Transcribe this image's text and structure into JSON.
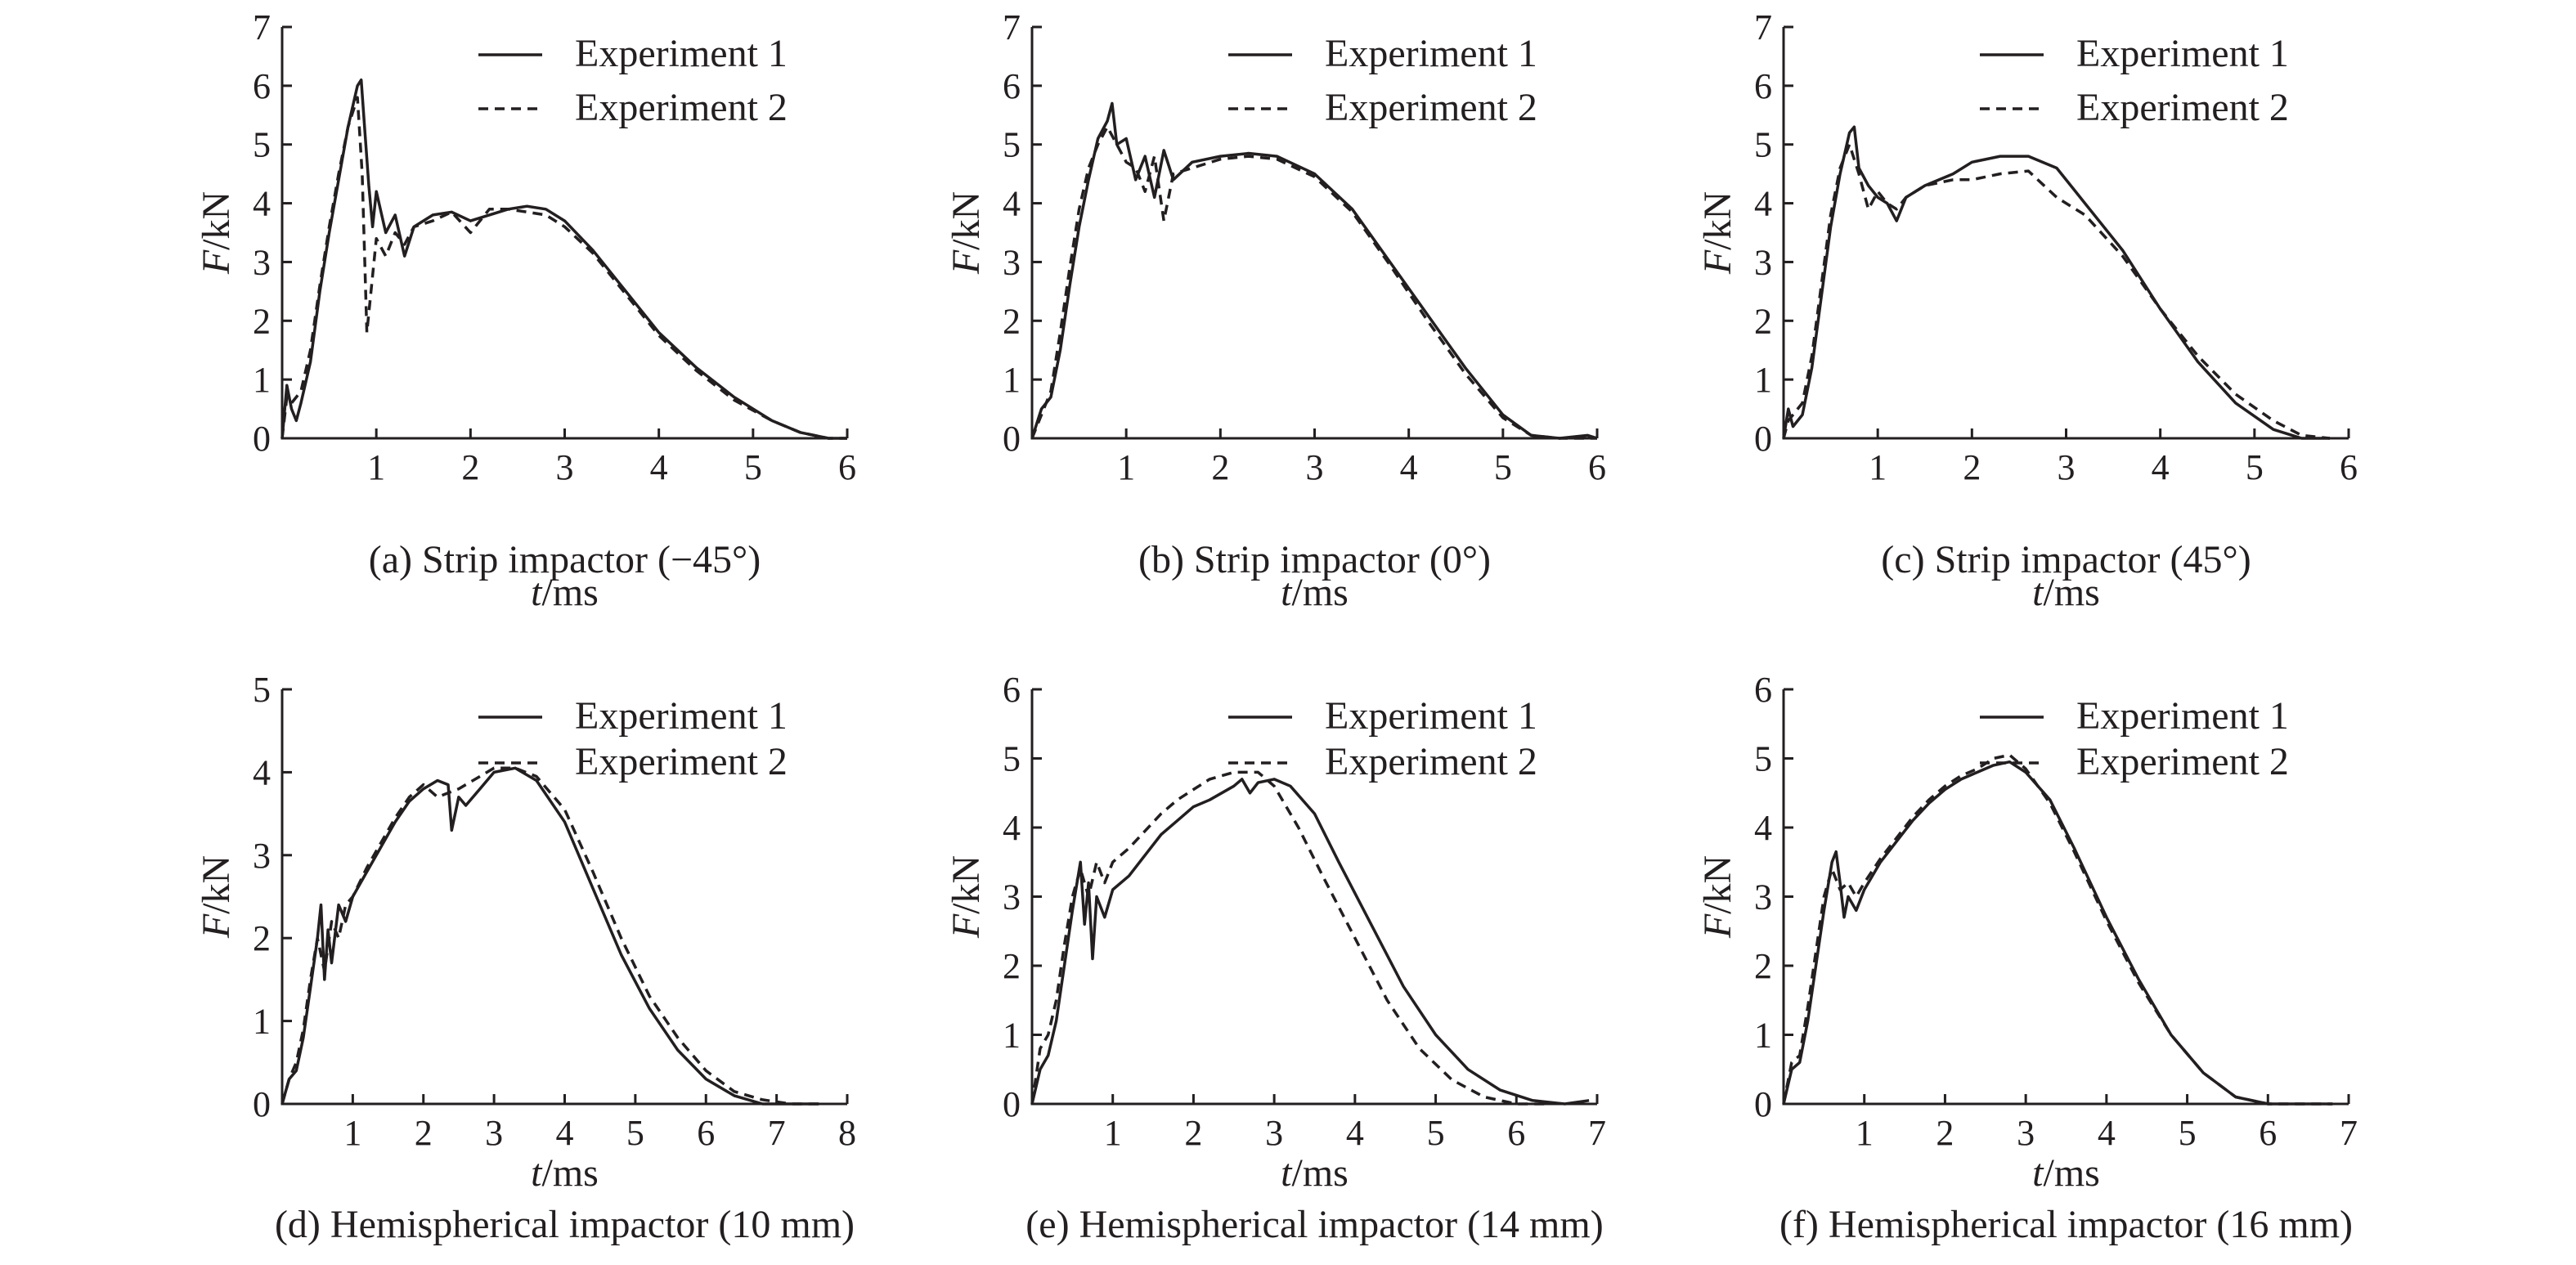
{
  "chart_data": [
    {
      "type": "line",
      "caption": "(a) Strip impactor (−45°)",
      "xlabel_var": "t",
      "xlabel_unit": "/ms",
      "ylabel_var": "F",
      "ylabel_unit": "/kN",
      "xlim": [
        0,
        6
      ],
      "ylim": [
        0,
        7
      ],
      "xticks": [
        1,
        2,
        3,
        4,
        5,
        6
      ],
      "yticks": [
        0,
        1,
        2,
        3,
        4,
        5,
        6,
        7
      ],
      "legend": [
        "Experiment 1",
        "Experiment 2"
      ],
      "series": [
        {
          "name": "Experiment 1",
          "style": "solid",
          "x": [
            0,
            0.05,
            0.1,
            0.15,
            0.2,
            0.3,
            0.4,
            0.5,
            0.6,
            0.7,
            0.8,
            0.84,
            0.88,
            0.92,
            0.96,
            1.0,
            1.1,
            1.2,
            1.3,
            1.4,
            1.6,
            1.8,
            2.0,
            2.2,
            2.4,
            2.6,
            2.8,
            3.0,
            3.3,
            3.6,
            4.0,
            4.4,
            4.8,
            5.2,
            5.5,
            5.8,
            6.0
          ],
          "y": [
            0,
            0.9,
            0.5,
            0.3,
            0.6,
            1.3,
            2.5,
            3.5,
            4.4,
            5.3,
            6.0,
            6.1,
            5.2,
            4.3,
            3.6,
            4.2,
            3.5,
            3.8,
            3.1,
            3.6,
            3.8,
            3.85,
            3.7,
            3.8,
            3.9,
            3.95,
            3.9,
            3.7,
            3.2,
            2.6,
            1.8,
            1.2,
            0.7,
            0.3,
            0.1,
            0.0,
            0.0
          ]
        },
        {
          "name": "Experiment 2",
          "style": "dashed",
          "x": [
            0,
            0.05,
            0.1,
            0.2,
            0.3,
            0.4,
            0.5,
            0.6,
            0.7,
            0.8,
            0.85,
            0.9,
            0.95,
            1.0,
            1.1,
            1.2,
            1.3,
            1.4,
            1.6,
            1.8,
            2.0,
            2.2,
            2.4,
            2.6,
            2.8,
            3.0,
            3.3,
            3.6,
            4.0,
            4.4,
            4.8,
            5.2,
            5.5,
            5.8,
            6.0
          ],
          "y": [
            0,
            0.7,
            0.6,
            0.8,
            1.5,
            2.6,
            3.6,
            4.5,
            5.3,
            5.8,
            4.5,
            1.8,
            2.6,
            3.4,
            3.1,
            3.5,
            3.3,
            3.6,
            3.7,
            3.85,
            3.5,
            3.9,
            3.9,
            3.85,
            3.8,
            3.6,
            3.15,
            2.55,
            1.75,
            1.15,
            0.65,
            0.3,
            0.1,
            0.0,
            0.0
          ]
        }
      ]
    },
    {
      "type": "line",
      "caption": "(b) Strip impactor (0°)",
      "xlabel_var": "t",
      "xlabel_unit": "/ms",
      "ylabel_var": "F",
      "ylabel_unit": "/kN",
      "xlim": [
        0,
        6
      ],
      "ylim": [
        0,
        7
      ],
      "xticks": [
        1,
        2,
        3,
        4,
        5,
        6
      ],
      "yticks": [
        0,
        1,
        2,
        3,
        4,
        5,
        6,
        7
      ],
      "legend": [
        "Experiment 1",
        "Experiment 2"
      ],
      "series": [
        {
          "name": "Experiment 1",
          "style": "solid",
          "x": [
            0,
            0.1,
            0.2,
            0.3,
            0.4,
            0.5,
            0.6,
            0.7,
            0.8,
            0.85,
            0.9,
            1.0,
            1.1,
            1.2,
            1.3,
            1.4,
            1.5,
            1.7,
            2.0,
            2.3,
            2.6,
            3.0,
            3.4,
            3.8,
            4.2,
            4.6,
            5.0,
            5.3,
            5.6,
            5.9,
            6.0
          ],
          "y": [
            0,
            0.5,
            0.7,
            1.5,
            2.6,
            3.6,
            4.4,
            5.1,
            5.4,
            5.7,
            5.0,
            5.1,
            4.4,
            4.8,
            4.1,
            4.9,
            4.4,
            4.7,
            4.8,
            4.85,
            4.8,
            4.5,
            3.9,
            3.0,
            2.1,
            1.2,
            0.4,
            0.05,
            0.0,
            0.05,
            0.0
          ]
        },
        {
          "name": "Experiment 2",
          "style": "dashed",
          "x": [
            0,
            0.1,
            0.2,
            0.3,
            0.4,
            0.5,
            0.6,
            0.7,
            0.8,
            0.9,
            1.0,
            1.1,
            1.2,
            1.3,
            1.4,
            1.5,
            1.7,
            2.0,
            2.3,
            2.6,
            3.0,
            3.4,
            3.8,
            4.2,
            4.6,
            5.0,
            5.3,
            5.6,
            6.0
          ],
          "y": [
            0,
            0.4,
            0.8,
            1.8,
            2.9,
            3.9,
            4.6,
            5.0,
            5.3,
            5.0,
            4.7,
            4.6,
            4.2,
            4.8,
            3.7,
            4.5,
            4.6,
            4.75,
            4.8,
            4.75,
            4.45,
            3.85,
            2.95,
            2.0,
            1.1,
            0.35,
            0.05,
            0.0,
            0.0
          ]
        }
      ]
    },
    {
      "type": "line",
      "caption": "(c) Strip impactor (45°)",
      "xlabel_var": "t",
      "xlabel_unit": "/ms",
      "ylabel_var": "F",
      "ylabel_unit": "/kN",
      "xlim": [
        0,
        6
      ],
      "ylim": [
        0,
        7
      ],
      "xticks": [
        1,
        2,
        3,
        4,
        5,
        6
      ],
      "yticks": [
        0,
        1,
        2,
        3,
        4,
        5,
        6,
        7
      ],
      "legend": [
        "Experiment 1",
        "Experiment 2"
      ],
      "series": [
        {
          "name": "Experiment 1",
          "style": "solid",
          "x": [
            0,
            0.05,
            0.1,
            0.2,
            0.3,
            0.4,
            0.5,
            0.6,
            0.7,
            0.75,
            0.8,
            0.9,
            1.0,
            1.1,
            1.2,
            1.3,
            1.5,
            1.8,
            2.0,
            2.3,
            2.6,
            2.9,
            3.2,
            3.6,
            4.0,
            4.4,
            4.8,
            5.2,
            5.5,
            5.8
          ],
          "y": [
            0,
            0.5,
            0.2,
            0.4,
            1.2,
            2.4,
            3.6,
            4.5,
            5.2,
            5.3,
            4.6,
            4.3,
            4.1,
            4.0,
            3.7,
            4.1,
            4.3,
            4.5,
            4.7,
            4.8,
            4.8,
            4.6,
            4.0,
            3.2,
            2.2,
            1.3,
            0.6,
            0.15,
            0.0,
            0.0
          ]
        },
        {
          "name": "Experiment 2",
          "style": "dashed",
          "x": [
            0,
            0.05,
            0.1,
            0.2,
            0.3,
            0.4,
            0.5,
            0.6,
            0.7,
            0.8,
            0.9,
            1.0,
            1.1,
            1.2,
            1.3,
            1.5,
            1.8,
            2.0,
            2.3,
            2.6,
            2.9,
            3.2,
            3.6,
            4.0,
            4.4,
            4.8,
            5.2,
            5.5,
            5.8
          ],
          "y": [
            0,
            0.3,
            0.4,
            0.6,
            1.4,
            2.6,
            3.8,
            4.6,
            5.0,
            4.5,
            3.9,
            4.2,
            4.0,
            3.9,
            4.1,
            4.3,
            4.4,
            4.4,
            4.5,
            4.55,
            4.1,
            3.8,
            3.1,
            2.2,
            1.4,
            0.75,
            0.3,
            0.05,
            0.0
          ]
        }
      ]
    },
    {
      "type": "line",
      "caption": "(d) Hemispherical impactor (10 mm)",
      "xlabel_var": "t",
      "xlabel_unit": "/ms",
      "ylabel_var": "F",
      "ylabel_unit": "/kN",
      "xlim": [
        0,
        8
      ],
      "ylim": [
        0,
        5
      ],
      "xticks": [
        1,
        2,
        3,
        4,
        5,
        6,
        7,
        8
      ],
      "yticks": [
        0,
        1,
        2,
        3,
        4,
        5
      ],
      "legend": [
        "Experiment 1",
        "Experiment 2"
      ],
      "series": [
        {
          "name": "Experiment 1",
          "style": "solid",
          "x": [
            0,
            0.1,
            0.2,
            0.3,
            0.4,
            0.5,
            0.55,
            0.6,
            0.65,
            0.7,
            0.8,
            0.9,
            1.0,
            1.2,
            1.4,
            1.6,
            1.8,
            2.0,
            2.2,
            2.35,
            2.4,
            2.5,
            2.6,
            2.8,
            3.0,
            3.3,
            3.6,
            4.0,
            4.4,
            4.8,
            5.2,
            5.6,
            6.0,
            6.4,
            6.8,
            7.2,
            7.6
          ],
          "y": [
            0,
            0.3,
            0.4,
            0.8,
            1.4,
            2.0,
            2.4,
            1.5,
            2.1,
            1.7,
            2.4,
            2.2,
            2.5,
            2.8,
            3.1,
            3.4,
            3.65,
            3.8,
            3.9,
            3.85,
            3.3,
            3.7,
            3.6,
            3.8,
            4.0,
            4.05,
            3.9,
            3.4,
            2.6,
            1.8,
            1.15,
            0.65,
            0.3,
            0.1,
            0.0,
            0.0,
            0.0
          ]
        },
        {
          "name": "Experiment 2",
          "style": "dashed",
          "x": [
            0,
            0.1,
            0.2,
            0.3,
            0.4,
            0.5,
            0.6,
            0.7,
            0.8,
            0.9,
            1.0,
            1.2,
            1.4,
            1.6,
            1.8,
            2.0,
            2.2,
            2.5,
            2.8,
            3.0,
            3.3,
            3.6,
            4.0,
            4.4,
            4.8,
            5.2,
            5.6,
            6.0,
            6.4,
            6.8,
            7.2,
            7.6
          ],
          "y": [
            0,
            0.3,
            0.5,
            0.9,
            1.5,
            2.0,
            1.6,
            2.2,
            2.0,
            2.4,
            2.5,
            2.85,
            3.15,
            3.45,
            3.7,
            3.85,
            3.7,
            3.8,
            3.95,
            4.05,
            4.05,
            3.95,
            3.55,
            2.8,
            2.0,
            1.3,
            0.8,
            0.4,
            0.15,
            0.05,
            0.0,
            0.0
          ]
        }
      ]
    },
    {
      "type": "line",
      "caption": "(e) Hemispherical impactor (14 mm)",
      "xlabel_var": "t",
      "xlabel_unit": "/ms",
      "ylabel_var": "F",
      "ylabel_unit": "/kN",
      "xlim": [
        0,
        7
      ],
      "ylim": [
        0,
        6
      ],
      "xticks": [
        1,
        2,
        3,
        4,
        5,
        6,
        7
      ],
      "yticks": [
        0,
        1,
        2,
        3,
        4,
        5,
        6
      ],
      "legend": [
        "Experiment 1",
        "Experiment 2"
      ],
      "series": [
        {
          "name": "Experiment 1",
          "style": "solid",
          "x": [
            0,
            0.1,
            0.2,
            0.3,
            0.4,
            0.5,
            0.6,
            0.65,
            0.7,
            0.75,
            0.8,
            0.9,
            1.0,
            1.2,
            1.4,
            1.6,
            1.8,
            2.0,
            2.2,
            2.5,
            2.6,
            2.7,
            2.8,
            3.0,
            3.2,
            3.5,
            3.8,
            4.2,
            4.6,
            5.0,
            5.4,
            5.8,
            6.2,
            6.6,
            6.9
          ],
          "y": [
            0,
            0.5,
            0.7,
            1.2,
            2.0,
            2.8,
            3.5,
            2.6,
            3.2,
            2.1,
            3.0,
            2.7,
            3.1,
            3.3,
            3.6,
            3.9,
            4.1,
            4.3,
            4.4,
            4.6,
            4.7,
            4.5,
            4.65,
            4.7,
            4.6,
            4.2,
            3.5,
            2.6,
            1.7,
            1.0,
            0.5,
            0.2,
            0.05,
            0.0,
            0.05
          ]
        },
        {
          "name": "Experiment 2",
          "style": "dashed",
          "x": [
            0,
            0.1,
            0.2,
            0.3,
            0.4,
            0.5,
            0.6,
            0.7,
            0.8,
            0.9,
            1.0,
            1.2,
            1.4,
            1.6,
            1.8,
            2.0,
            2.2,
            2.5,
            2.8,
            3.0,
            3.3,
            3.6,
            4.0,
            4.4,
            4.8,
            5.2,
            5.6,
            6.0,
            6.4
          ],
          "y": [
            0,
            0.8,
            1.0,
            1.5,
            2.3,
            3.0,
            3.4,
            3.0,
            3.5,
            3.2,
            3.5,
            3.7,
            3.95,
            4.2,
            4.4,
            4.55,
            4.7,
            4.8,
            4.8,
            4.6,
            4.0,
            3.3,
            2.4,
            1.5,
            0.8,
            0.35,
            0.1,
            0.0,
            0.0
          ]
        }
      ]
    },
    {
      "type": "line",
      "caption": "(f) Hemispherical impactor (16 mm)",
      "xlabel_var": "t",
      "xlabel_unit": "/ms",
      "ylabel_var": "F",
      "ylabel_unit": "/kN",
      "xlim": [
        0,
        7
      ],
      "ylim": [
        0,
        6
      ],
      "xticks": [
        1,
        2,
        3,
        4,
        5,
        6,
        7
      ],
      "yticks": [
        0,
        1,
        2,
        3,
        4,
        5,
        6
      ],
      "legend": [
        "Experiment 1",
        "Experiment 2"
      ],
      "series": [
        {
          "name": "Experiment 1",
          "style": "solid",
          "x": [
            0,
            0.1,
            0.2,
            0.3,
            0.4,
            0.5,
            0.6,
            0.65,
            0.7,
            0.75,
            0.8,
            0.9,
            1.0,
            1.2,
            1.4,
            1.6,
            1.8,
            2.0,
            2.2,
            2.4,
            2.6,
            2.8,
            3.0,
            3.3,
            3.6,
            4.0,
            4.4,
            4.8,
            5.2,
            5.6,
            6.0,
            6.4,
            6.8
          ],
          "y": [
            0,
            0.5,
            0.6,
            1.2,
            2.0,
            2.8,
            3.5,
            3.65,
            3.2,
            2.7,
            3.0,
            2.8,
            3.1,
            3.5,
            3.8,
            4.1,
            4.35,
            4.55,
            4.7,
            4.8,
            4.9,
            4.95,
            4.8,
            4.4,
            3.7,
            2.7,
            1.8,
            1.0,
            0.45,
            0.1,
            0.0,
            0.0,
            0.0
          ]
        },
        {
          "name": "Experiment 2",
          "style": "dashed",
          "x": [
            0,
            0.1,
            0.2,
            0.3,
            0.4,
            0.5,
            0.6,
            0.7,
            0.8,
            0.9,
            1.0,
            1.2,
            1.4,
            1.6,
            1.8,
            2.0,
            2.2,
            2.4,
            2.6,
            2.8,
            3.0,
            3.3,
            3.6,
            4.0,
            4.4,
            4.8,
            5.2,
            5.6,
            6.0,
            6.4,
            6.8
          ],
          "y": [
            0,
            0.6,
            0.7,
            1.4,
            2.2,
            3.0,
            3.4,
            3.1,
            3.2,
            3.0,
            3.2,
            3.55,
            3.85,
            4.15,
            4.4,
            4.6,
            4.75,
            4.85,
            5.0,
            5.05,
            4.85,
            4.35,
            3.65,
            2.65,
            1.75,
            1.0,
            0.45,
            0.1,
            0.0,
            0.0,
            0.0
          ]
        }
      ]
    }
  ]
}
